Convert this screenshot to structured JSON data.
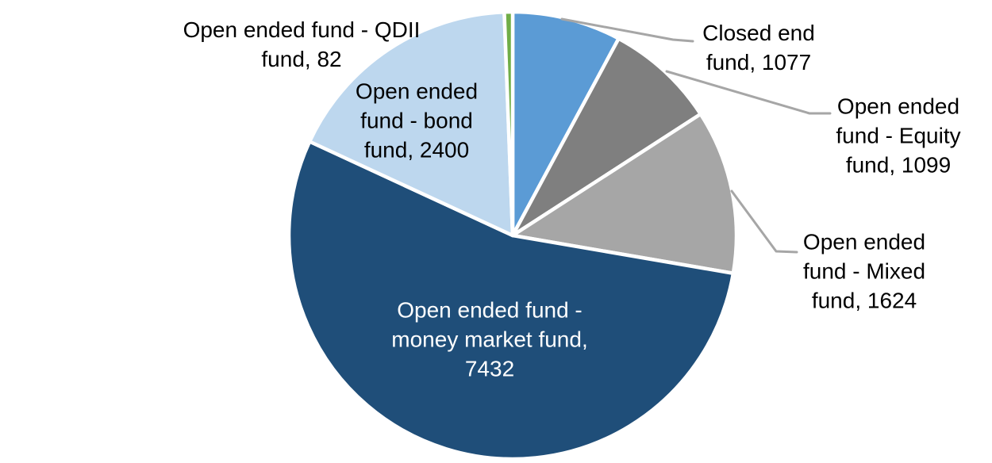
{
  "chart_data": {
    "type": "pie",
    "title": "",
    "total": 13714,
    "direction": "clockwise",
    "start_angle_deg": 0,
    "background": "#FFFFFF",
    "leader_line_color": "#A6A6A6",
    "slice_border_color": "#FFFFFF",
    "slices": [
      {
        "name": "Closed end fund",
        "value": 1077,
        "color": "#5B9BD5",
        "label_text": "Closed end fund, 1077",
        "label_lines": [
          "Closed end",
          "fund, 1077"
        ],
        "label_text_color": "#000000",
        "has_leader_line": true
      },
      {
        "name": "Open ended fund - Equity fund",
        "value": 1099,
        "color": "#7F7F7F",
        "label_text": "Open ended fund - Equity fund, 1099",
        "label_lines": [
          "Open ended",
          "fund - Equity",
          "fund, 1099"
        ],
        "label_text_color": "#000000",
        "has_leader_line": true
      },
      {
        "name": "Open ended fund - Mixed fund",
        "value": 1624,
        "color": "#A6A6A6",
        "label_text": "Open ended fund - Mixed fund, 1624",
        "label_lines": [
          "Open ended",
          "fund - Mixed",
          "fund, 1624"
        ],
        "label_text_color": "#000000",
        "has_leader_line": true
      },
      {
        "name": "Open ended fund - money market fund",
        "value": 7432,
        "color": "#1F4E79",
        "label_text": "Open ended fund - money market fund, 7432",
        "label_lines": [
          "Open ended fund -",
          "money market fund,",
          "7432"
        ],
        "label_text_color": "#FFFFFF",
        "has_leader_line": false
      },
      {
        "name": "Open ended fund - bond fund",
        "value": 2400,
        "color": "#BDD7EE",
        "label_text": "Open ended fund - bond fund, 2400",
        "label_lines": [
          "Open ended",
          "fund - bond",
          "fund, 2400"
        ],
        "label_text_color": "#000000",
        "has_leader_line": false
      },
      {
        "name": "Open ended fund - QDII fund",
        "value": 82,
        "color": "#70AD47",
        "label_text": "Open ended fund - QDII fund, 82",
        "label_lines": [
          "Open ended fund - QDII",
          "fund, 82"
        ],
        "label_text_color": "#000000",
        "has_leader_line": false
      }
    ]
  }
}
